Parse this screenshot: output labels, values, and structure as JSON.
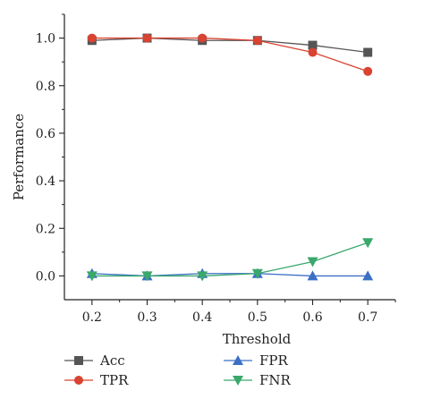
{
  "chart_data": {
    "type": "line",
    "xlabel": "Threshold",
    "ylabel": "Performance",
    "x": [
      0.2,
      0.3,
      0.4,
      0.5,
      0.6,
      0.7
    ],
    "x_tick_labels": [
      "0.2",
      "0.3",
      "0.4",
      "0.5",
      "0.6",
      "0.7"
    ],
    "xlim": [
      0.15,
      0.75
    ],
    "ylim": [
      -0.1,
      1.1
    ],
    "y_ticks": [
      0.0,
      0.2,
      0.4,
      0.6,
      0.8,
      1.0
    ],
    "y_tick_labels": [
      "0.0",
      "0.2",
      "0.4",
      "0.6",
      "0.8",
      "1.0"
    ],
    "grid": false,
    "legend_position": "bottom",
    "series": [
      {
        "name": "Acc",
        "color": "#555555",
        "marker": "square",
        "values": [
          0.99,
          1.0,
          0.99,
          0.99,
          0.97,
          0.94
        ]
      },
      {
        "name": "TPR",
        "color": "#d94332",
        "marker": "circle",
        "values": [
          1.0,
          1.0,
          1.0,
          0.99,
          0.94,
          0.86
        ]
      },
      {
        "name": "FPR",
        "color": "#3b6fc6",
        "marker": "triangle-up",
        "values": [
          0.01,
          0.0,
          0.01,
          0.01,
          0.0,
          0.0
        ]
      },
      {
        "name": "FNR",
        "color": "#3aa86b",
        "marker": "triangle-down",
        "values": [
          0.0,
          0.0,
          0.0,
          0.01,
          0.06,
          0.14
        ]
      }
    ]
  }
}
